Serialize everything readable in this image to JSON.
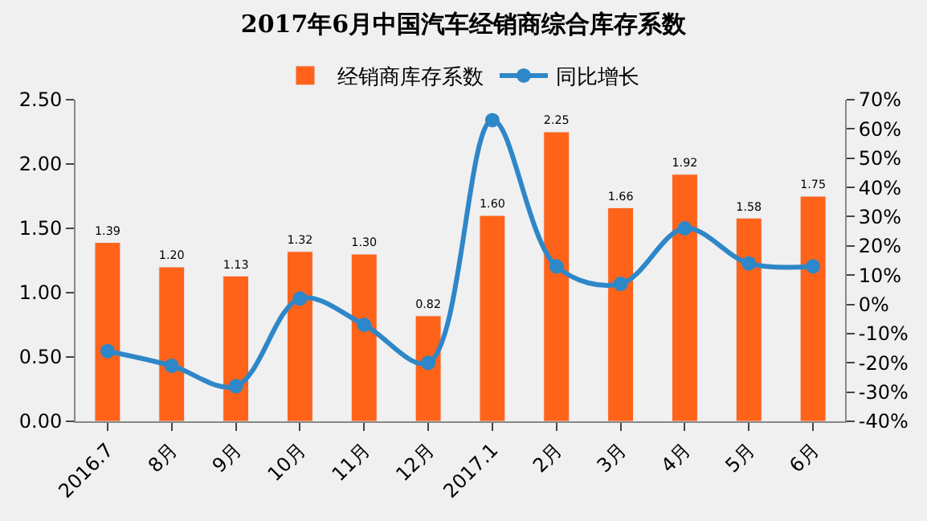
{
  "chart_data": {
    "type": "bar",
    "title": "2017年6月中国汽车经销商综合库存系数",
    "categories": [
      "2016.7",
      "8月",
      "9月",
      "10月",
      "11月",
      "12月",
      "2017.1",
      "2月",
      "3月",
      "4月",
      "5月",
      "6月"
    ],
    "series": [
      {
        "name": "经销商库存系数",
        "color": "#ff6319",
        "values": [
          1.39,
          1.2,
          1.13,
          1.32,
          1.3,
          0.82,
          1.6,
          2.25,
          1.66,
          1.92,
          1.58,
          1.75
        ],
        "value_labels": [
          "1.39",
          "1.20",
          "1.13",
          "1.32",
          "1.30",
          "0.82",
          "1.60",
          "2.25",
          "1.66",
          "1.92",
          "1.58",
          "1.75"
        ]
      },
      {
        "name": "同比增长",
        "type": "line",
        "axis": "y2",
        "color": "#2e87c8",
        "marker": "circle",
        "values": [
          -16,
          -21,
          -28,
          2,
          -7,
          -20,
          63,
          13,
          7,
          26,
          14,
          13
        ]
      }
    ],
    "ylim": [
      0,
      2.5
    ],
    "yticks": [
      {
        "value": 0,
        "label": "0.00"
      },
      {
        "value": 0.5,
        "label": "0.50"
      },
      {
        "value": 1,
        "label": "1.00"
      },
      {
        "value": 1.5,
        "label": "1.50"
      },
      {
        "value": 2,
        "label": "2.00"
      },
      {
        "value": 2.5,
        "label": "2.50"
      }
    ],
    "y2lim": [
      -40,
      70
    ],
    "y2ticks": [
      {
        "value": -40,
        "label": "-40%"
      },
      {
        "value": -30,
        "label": "-30%"
      },
      {
        "value": -20,
        "label": "-20%"
      },
      {
        "value": -10,
        "label": "-10%"
      },
      {
        "value": 0,
        "label": "0%"
      },
      {
        "value": 10,
        "label": "10%"
      },
      {
        "value": 20,
        "label": "20%"
      },
      {
        "value": 30,
        "label": "30%"
      },
      {
        "value": 40,
        "label": "40%"
      },
      {
        "value": 50,
        "label": "50%"
      },
      {
        "value": 60,
        "label": "60%"
      },
      {
        "value": 70,
        "label": "70%"
      }
    ],
    "grid": false,
    "legend": "top"
  }
}
